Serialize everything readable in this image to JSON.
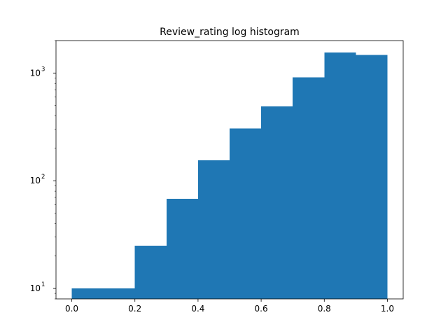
{
  "chart_data": {
    "type": "bar",
    "title": "Review_rating log histogram",
    "xlabel": "",
    "ylabel": "",
    "bin_edges": [
      0.0,
      0.1,
      0.2,
      0.3,
      0.4,
      0.5,
      0.6,
      0.7,
      0.8,
      0.9,
      1.0
    ],
    "values": [
      10,
      10,
      25,
      68,
      155,
      305,
      490,
      910,
      1550,
      1470
    ],
    "xlim": [
      -0.05,
      1.05
    ],
    "ylim": [
      8,
      2000
    ],
    "yscale": "log",
    "x_ticks": [
      {
        "value": 0.0,
        "label": "0.0"
      },
      {
        "value": 0.2,
        "label": "0.2"
      },
      {
        "value": 0.4,
        "label": "0.4"
      },
      {
        "value": 0.6,
        "label": "0.6"
      },
      {
        "value": 0.8,
        "label": "0.8"
      },
      {
        "value": 1.0,
        "label": "1.0"
      }
    ],
    "y_ticks": [
      {
        "value": 10,
        "base": "10",
        "exp": "1"
      },
      {
        "value": 100,
        "base": "10",
        "exp": "2"
      },
      {
        "value": 1000,
        "base": "10",
        "exp": "3"
      }
    ],
    "grid": false,
    "bar_color": "#1f77b4"
  }
}
